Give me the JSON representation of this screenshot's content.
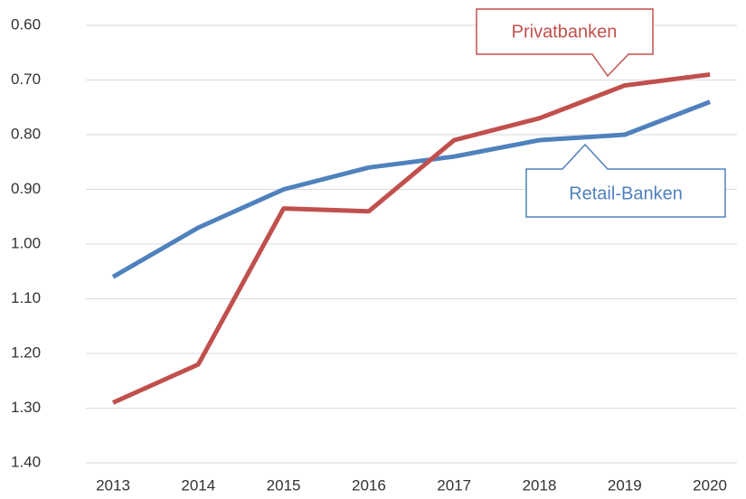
{
  "chart_data": {
    "type": "line",
    "categories": [
      "2013",
      "2014",
      "2015",
      "2016",
      "2017",
      "2018",
      "2019",
      "2020"
    ],
    "series": [
      {
        "name": "Retail-Banken",
        "color": "#4f81bd",
        "values": [
          1.06,
          0.97,
          0.9,
          0.86,
          0.84,
          0.81,
          0.8,
          0.74
        ]
      },
      {
        "name": "Privatbanken",
        "color": "#c0504d",
        "values": [
          1.29,
          1.22,
          0.935,
          0.94,
          0.81,
          0.77,
          0.71,
          0.69
        ]
      }
    ],
    "ylim": [
      0.6,
      1.4
    ],
    "y_reversed": true,
    "yticks": [
      {
        "value": 0.6,
        "label": "0.60"
      },
      {
        "value": 0.7,
        "label": "0.70"
      },
      {
        "value": 0.8,
        "label": "0.80"
      },
      {
        "value": 0.9,
        "label": "0.90"
      },
      {
        "value": 1.0,
        "label": "1.00"
      },
      {
        "value": 1.1,
        "label": "1.10"
      },
      {
        "value": 1.2,
        "label": "1.20"
      },
      {
        "value": 1.3,
        "label": "1.30"
      },
      {
        "value": 1.4,
        "label": "1.40"
      }
    ],
    "grid": true
  }
}
